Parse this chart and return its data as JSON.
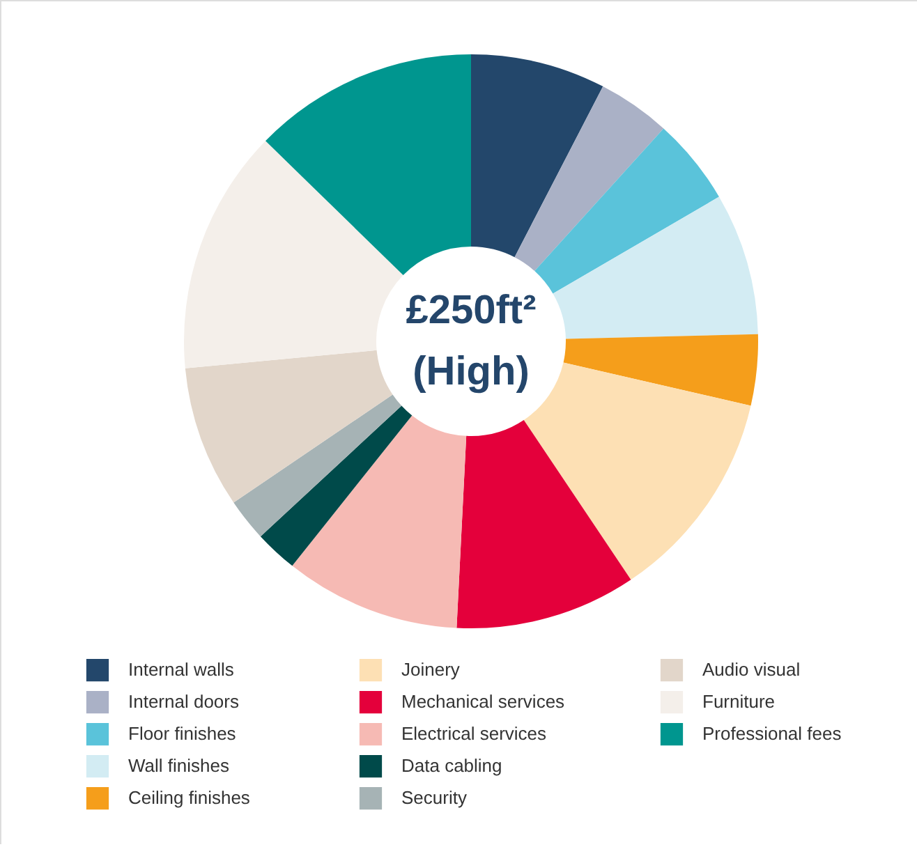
{
  "chart_data": {
    "type": "donut",
    "annotations": [
      "£250ft²",
      "(High)"
    ],
    "categories": [
      "Internal walls",
      "Internal doors",
      "Floor finishes",
      "Wall finishes",
      "Ceiling finishes",
      "Joinery",
      "Mechanical services",
      "Electrical services",
      "Data cabling",
      "Security",
      "Audio visual",
      "Furniture",
      "Professional fees"
    ],
    "values": [
      7.6,
      4.1,
      4.9,
      8,
      4,
      12,
      10.2,
      9.9,
      2.4,
      2.4,
      8,
      13.8,
      12.7
    ],
    "colors": [
      "#23476b",
      "#aab1c6",
      "#5ac3da",
      "#d3ecf3",
      "#f59e1b",
      "#fde0b4",
      "#e4003b",
      "#f6bab4",
      "#004a4a",
      "#a6b3b5",
      "#e2d6ca",
      "#f4efea",
      "#00968f"
    ],
    "legend": "bottom"
  }
}
